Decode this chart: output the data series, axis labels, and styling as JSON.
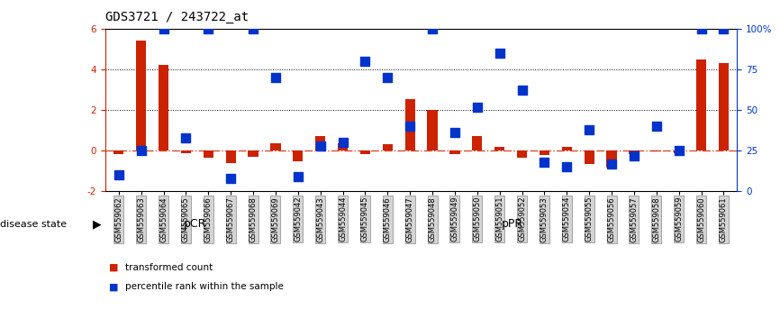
{
  "title": "GDS3721 / 243722_at",
  "categories": [
    "GSM559062",
    "GSM559063",
    "GSM559064",
    "GSM559065",
    "GSM559066",
    "GSM559067",
    "GSM559068",
    "GSM559069",
    "GSM559042",
    "GSM559043",
    "GSM559044",
    "GSM559045",
    "GSM559046",
    "GSM559047",
    "GSM559048",
    "GSM559049",
    "GSM559050",
    "GSM559051",
    "GSM559052",
    "GSM559053",
    "GSM559054",
    "GSM559055",
    "GSM559056",
    "GSM559057",
    "GSM559058",
    "GSM559059",
    "GSM559060",
    "GSM559061"
  ],
  "transformed_count": [
    -0.15,
    5.4,
    4.2,
    -0.1,
    -0.35,
    -0.6,
    -0.3,
    0.35,
    -0.5,
    0.7,
    0.35,
    -0.15,
    0.3,
    2.55,
    2.0,
    -0.15,
    0.7,
    0.2,
    -0.35,
    -0.2,
    0.2,
    -0.65,
    -0.85,
    -0.15,
    -0.05,
    -0.1,
    4.5,
    4.3
  ],
  "percentile_rank": [
    10,
    25,
    100,
    33,
    100,
    8,
    100,
    70,
    9,
    28,
    30,
    80,
    70,
    40,
    100,
    36,
    52,
    85,
    62,
    18,
    15,
    38,
    17,
    22,
    40,
    25,
    100,
    100
  ],
  "pCR_count": 8,
  "bar_color": "#cc2200",
  "dot_color": "#0033cc",
  "pCR_color": "#b8f0b8",
  "pPR_color": "#66dd66",
  "ylim_left": [
    -2.0,
    6.0
  ],
  "ylim_right": [
    0,
    100
  ],
  "yticks_left": [
    -2,
    0,
    2,
    4,
    6
  ],
  "yticks_right": [
    0,
    25,
    50,
    75,
    100
  ],
  "ytick_labels_right": [
    "0",
    "25",
    "50",
    "75",
    "100%"
  ],
  "bar_width": 0.45,
  "dot_size": 45,
  "legend_items": [
    "transformed count",
    "percentile rank within the sample"
  ],
  "disease_state_label": "disease state",
  "pCR_label": "pCR",
  "pPR_label": "pPR"
}
